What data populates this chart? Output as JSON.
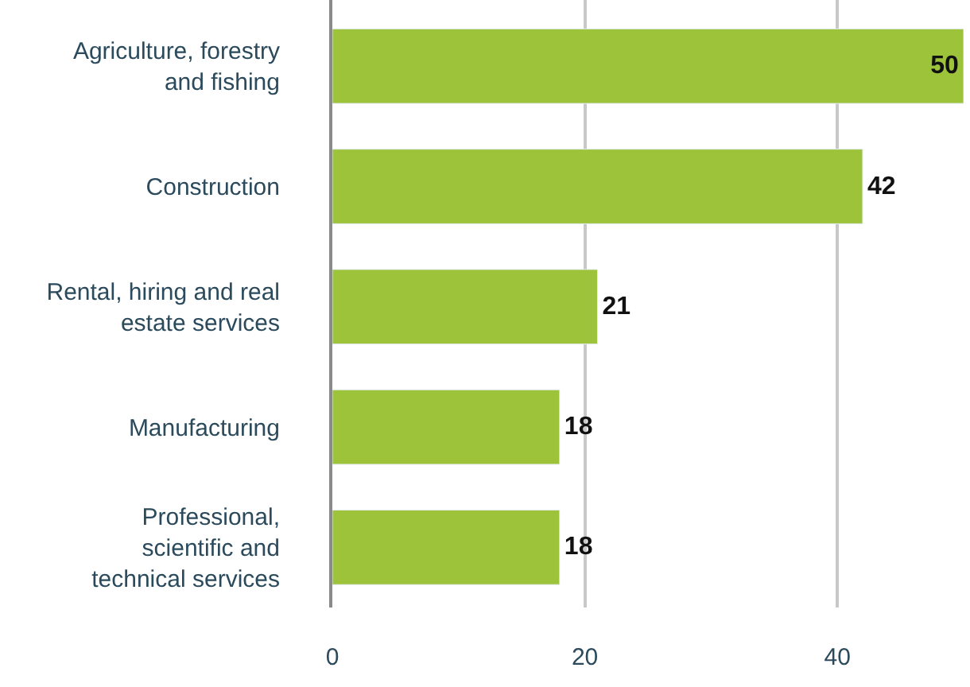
{
  "chart_data": {
    "type": "bar",
    "orientation": "horizontal",
    "categories": [
      "Agriculture, forestry\nand fishing",
      "Construction",
      "Rental, hiring and real\nestate services",
      "Manufacturing",
      "Professional,\nscientific and\ntechnical services"
    ],
    "values": [
      50,
      42,
      21,
      18,
      18
    ],
    "color": "#9dc33b",
    "xlim": [
      0,
      50
    ],
    "xticks": [
      0,
      20,
      40
    ],
    "grid": "x",
    "data_labels": true
  }
}
